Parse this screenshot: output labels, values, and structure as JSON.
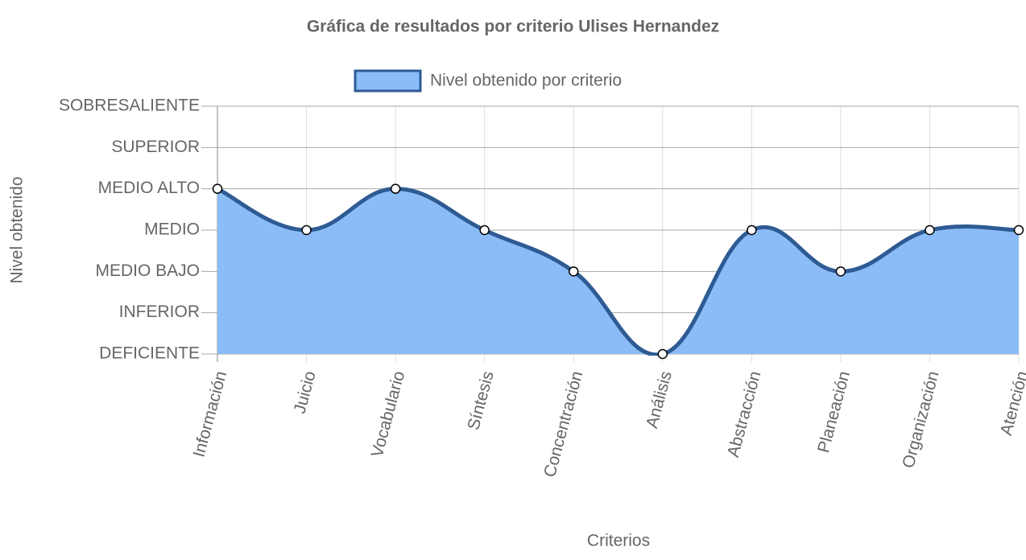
{
  "chart_data": {
    "type": "area",
    "title": "Gráfica de resultados por criterio Ulises Hernandez",
    "x_label": "Criterios",
    "y_label": "Nivel obtenido",
    "categories": [
      "Información",
      "Juicio",
      "Vocabulario",
      "Síntesis",
      "Concentración",
      "Análisis",
      "Abstracción",
      "Planeación",
      "Organización",
      "Atención"
    ],
    "series": [
      {
        "name": "Nivel obtenido por criterio",
        "color": "#2f5b94",
        "fill": "#8bbcf7",
        "values": [
          4,
          3,
          4,
          3,
          2,
          0,
          3,
          2,
          3,
          3
        ]
      }
    ],
    "ylim": [
      0,
      6
    ],
    "yticks": [
      {
        "value": 0,
        "label": "DEFICIENTE"
      },
      {
        "value": 1,
        "label": "INFERIOR"
      },
      {
        "value": 2,
        "label": "MEDIO BAJO"
      },
      {
        "value": 3,
        "label": "MEDIO"
      },
      {
        "value": 4,
        "label": "MEDIO ALTO"
      },
      {
        "value": 5,
        "label": "SUPERIOR"
      },
      {
        "value": 6,
        "label": "SOBRESALIENTE"
      }
    ],
    "grid": true
  }
}
